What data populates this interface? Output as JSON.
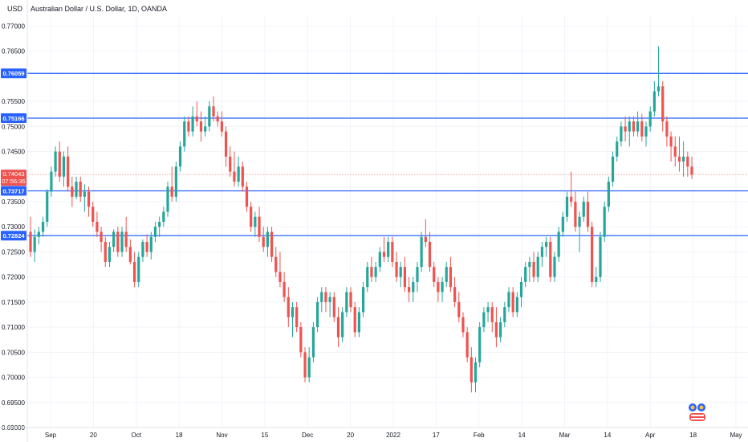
{
  "chart_data": {
    "type": "candlestick",
    "title": "Australian Dollar / U.S. Dollar, 1D, OANDA",
    "currency_label": "USD",
    "ylim": [
      0.69,
      0.772
    ],
    "y_ticks": [
      "0.77000",
      "0.76500",
      "0.75500",
      "0.75000",
      "0.74500",
      "0.73500",
      "0.73000",
      "0.72500",
      "0.72000",
      "0.71500",
      "0.71000",
      "0.70500",
      "0.70000",
      "0.69500",
      "0.69000"
    ],
    "x_labels": [
      "Sep",
      "20",
      "Oct",
      "18",
      "Nov",
      "15",
      "Dec",
      "20",
      "2022",
      "17",
      "Feb",
      "14",
      "Mar",
      "14",
      "Apr",
      "18",
      "May"
    ],
    "levels": [
      {
        "value": 0.76059,
        "label": "0.76059"
      },
      {
        "value": 0.75166,
        "label": "0.75166"
      },
      {
        "value": 0.73717,
        "label": "0.73717"
      },
      {
        "value": 0.72824,
        "label": "0.72824"
      }
    ],
    "current_price": {
      "value": 0.74043,
      "label": "0.74043",
      "countdown": "07:56:36"
    },
    "candles": [
      [
        0.729,
        0.732,
        0.724,
        0.725
      ],
      [
        0.725,
        0.7295,
        0.723,
        0.728
      ],
      [
        0.728,
        0.73,
        0.7265,
        0.729
      ],
      [
        0.729,
        0.732,
        0.728,
        0.731
      ],
      [
        0.731,
        0.7375,
        0.73,
        0.737
      ],
      [
        0.737,
        0.742,
        0.736,
        0.741
      ],
      [
        0.741,
        0.746,
        0.74,
        0.745
      ],
      [
        0.745,
        0.747,
        0.739,
        0.74
      ],
      [
        0.74,
        0.745,
        0.738,
        0.744
      ],
      [
        0.744,
        0.746,
        0.737,
        0.738
      ],
      [
        0.738,
        0.74,
        0.734,
        0.736
      ],
      [
        0.736,
        0.74,
        0.7355,
        0.739
      ],
      [
        0.739,
        0.74,
        0.735,
        0.736
      ],
      [
        0.736,
        0.7385,
        0.733,
        0.737
      ],
      [
        0.737,
        0.738,
        0.732,
        0.734
      ],
      [
        0.734,
        0.735,
        0.73,
        0.731
      ],
      [
        0.731,
        0.733,
        0.728,
        0.729
      ],
      [
        0.729,
        0.73,
        0.725,
        0.727
      ],
      [
        0.727,
        0.728,
        0.722,
        0.723
      ],
      [
        0.723,
        0.727,
        0.722,
        0.726
      ],
      [
        0.726,
        0.7295,
        0.725,
        0.729
      ],
      [
        0.729,
        0.73,
        0.724,
        0.725
      ],
      [
        0.725,
        0.73,
        0.724,
        0.729
      ],
      [
        0.729,
        0.732,
        0.725,
        0.726
      ],
      [
        0.726,
        0.7275,
        0.7225,
        0.723
      ],
      [
        0.723,
        0.725,
        0.718,
        0.719
      ],
      [
        0.719,
        0.725,
        0.718,
        0.724
      ],
      [
        0.724,
        0.7275,
        0.723,
        0.727
      ],
      [
        0.727,
        0.7285,
        0.724,
        0.725
      ],
      [
        0.725,
        0.729,
        0.7235,
        0.728
      ],
      [
        0.728,
        0.731,
        0.727,
        0.73
      ],
      [
        0.73,
        0.732,
        0.728,
        0.731
      ],
      [
        0.731,
        0.734,
        0.73,
        0.733
      ],
      [
        0.733,
        0.739,
        0.732,
        0.738
      ],
      [
        0.738,
        0.742,
        0.735,
        0.736
      ],
      [
        0.736,
        0.743,
        0.735,
        0.742
      ],
      [
        0.742,
        0.747,
        0.741,
        0.746
      ],
      [
        0.746,
        0.752,
        0.745,
        0.751
      ],
      [
        0.751,
        0.752,
        0.748,
        0.749
      ],
      [
        0.749,
        0.754,
        0.748,
        0.752
      ],
      [
        0.752,
        0.755,
        0.75,
        0.751
      ],
      [
        0.751,
        0.753,
        0.747,
        0.749
      ],
      [
        0.749,
        0.752,
        0.748,
        0.75
      ],
      [
        0.75,
        0.755,
        0.749,
        0.754
      ],
      [
        0.754,
        0.756,
        0.751,
        0.752
      ],
      [
        0.752,
        0.753,
        0.75,
        0.751
      ],
      [
        0.751,
        0.753,
        0.748,
        0.749
      ],
      [
        0.749,
        0.75,
        0.742,
        0.744
      ],
      [
        0.744,
        0.746,
        0.74,
        0.741
      ],
      [
        0.741,
        0.745,
        0.738,
        0.739
      ],
      [
        0.739,
        0.744,
        0.738,
        0.742
      ],
      [
        0.742,
        0.743,
        0.737,
        0.738
      ],
      [
        0.738,
        0.739,
        0.733,
        0.734
      ],
      [
        0.734,
        0.735,
        0.729,
        0.73
      ],
      [
        0.73,
        0.733,
        0.728,
        0.732
      ],
      [
        0.732,
        0.734,
        0.727,
        0.728
      ],
      [
        0.728,
        0.73,
        0.725,
        0.726
      ],
      [
        0.726,
        0.73,
        0.724,
        0.729
      ],
      [
        0.729,
        0.73,
        0.723,
        0.724
      ],
      [
        0.724,
        0.726,
        0.72,
        0.721
      ],
      [
        0.721,
        0.725,
        0.718,
        0.719
      ],
      [
        0.719,
        0.721,
        0.715,
        0.716
      ],
      [
        0.716,
        0.718,
        0.71,
        0.712
      ],
      [
        0.712,
        0.715,
        0.708,
        0.714
      ],
      [
        0.714,
        0.715,
        0.709,
        0.71
      ],
      [
        0.71,
        0.711,
        0.704,
        0.705
      ],
      [
        0.705,
        0.706,
        0.699,
        0.7
      ],
      [
        0.7,
        0.706,
        0.699,
        0.704
      ],
      [
        0.704,
        0.711,
        0.703,
        0.71
      ],
      [
        0.71,
        0.716,
        0.709,
        0.715
      ],
      [
        0.715,
        0.718,
        0.713,
        0.717
      ],
      [
        0.717,
        0.718,
        0.713,
        0.715
      ],
      [
        0.715,
        0.717,
        0.712,
        0.716
      ],
      [
        0.716,
        0.717,
        0.711,
        0.712
      ],
      [
        0.712,
        0.714,
        0.706,
        0.708
      ],
      [
        0.708,
        0.714,
        0.707,
        0.713
      ],
      [
        0.713,
        0.718,
        0.712,
        0.717
      ],
      [
        0.717,
        0.718,
        0.713,
        0.714
      ],
      [
        0.714,
        0.715,
        0.708,
        0.709
      ],
      [
        0.709,
        0.714,
        0.708,
        0.713
      ],
      [
        0.713,
        0.719,
        0.712,
        0.718
      ],
      [
        0.718,
        0.723,
        0.717,
        0.722
      ],
      [
        0.722,
        0.724,
        0.719,
        0.72
      ],
      [
        0.72,
        0.723,
        0.719,
        0.722
      ],
      [
        0.722,
        0.726,
        0.721,
        0.725
      ],
      [
        0.725,
        0.728,
        0.723,
        0.724
      ],
      [
        0.724,
        0.728,
        0.723,
        0.727
      ],
      [
        0.727,
        0.728,
        0.722,
        0.723
      ],
      [
        0.723,
        0.725,
        0.719,
        0.72
      ],
      [
        0.72,
        0.723,
        0.718,
        0.722
      ],
      [
        0.722,
        0.724,
        0.717,
        0.718
      ],
      [
        0.718,
        0.72,
        0.715,
        0.717
      ],
      [
        0.717,
        0.72,
        0.715,
        0.719
      ],
      [
        0.719,
        0.723,
        0.717,
        0.722
      ],
      [
        0.722,
        0.729,
        0.721,
        0.728
      ],
      [
        0.728,
        0.7315,
        0.726,
        0.727
      ],
      [
        0.727,
        0.729,
        0.721,
        0.722
      ],
      [
        0.722,
        0.723,
        0.718,
        0.719
      ],
      [
        0.719,
        0.72,
        0.715,
        0.717
      ],
      [
        0.717,
        0.72,
        0.715,
        0.719
      ],
      [
        0.719,
        0.723,
        0.718,
        0.722
      ],
      [
        0.722,
        0.724,
        0.717,
        0.718
      ],
      [
        0.718,
        0.72,
        0.714,
        0.715
      ],
      [
        0.715,
        0.717,
        0.711,
        0.712
      ],
      [
        0.712,
        0.713,
        0.708,
        0.709
      ],
      [
        0.709,
        0.71,
        0.703,
        0.704
      ],
      [
        0.704,
        0.706,
        0.697,
        0.699
      ],
      [
        0.699,
        0.704,
        0.697,
        0.703
      ],
      [
        0.703,
        0.711,
        0.702,
        0.71
      ],
      [
        0.71,
        0.714,
        0.709,
        0.713
      ],
      [
        0.713,
        0.715,
        0.711,
        0.714
      ],
      [
        0.714,
        0.715,
        0.709,
        0.711
      ],
      [
        0.711,
        0.714,
        0.706,
        0.708
      ],
      [
        0.708,
        0.712,
        0.707,
        0.711
      ],
      [
        0.711,
        0.715,
        0.71,
        0.714
      ],
      [
        0.714,
        0.718,
        0.713,
        0.717
      ],
      [
        0.717,
        0.718,
        0.712,
        0.713
      ],
      [
        0.713,
        0.717,
        0.712,
        0.716
      ],
      [
        0.716,
        0.72,
        0.714,
        0.719
      ],
      [
        0.719,
        0.723,
        0.718,
        0.722
      ],
      [
        0.722,
        0.724,
        0.719,
        0.723
      ],
      [
        0.723,
        0.725,
        0.719,
        0.72
      ],
      [
        0.72,
        0.725,
        0.719,
        0.724
      ],
      [
        0.724,
        0.727,
        0.722,
        0.726
      ],
      [
        0.726,
        0.728,
        0.724,
        0.727
      ],
      [
        0.727,
        0.728,
        0.719,
        0.72
      ],
      [
        0.72,
        0.725,
        0.719,
        0.724
      ],
      [
        0.724,
        0.73,
        0.723,
        0.729
      ],
      [
        0.729,
        0.733,
        0.728,
        0.732
      ],
      [
        0.732,
        0.737,
        0.731,
        0.736
      ],
      [
        0.736,
        0.741,
        0.734,
        0.735
      ],
      [
        0.735,
        0.737,
        0.729,
        0.73
      ],
      [
        0.73,
        0.733,
        0.725,
        0.732
      ],
      [
        0.732,
        0.736,
        0.731,
        0.735
      ],
      [
        0.735,
        0.737,
        0.729,
        0.73
      ],
      [
        0.73,
        0.731,
        0.718,
        0.719
      ],
      [
        0.719,
        0.722,
        0.718,
        0.72
      ],
      [
        0.72,
        0.729,
        0.719,
        0.728
      ],
      [
        0.728,
        0.735,
        0.727,
        0.734
      ],
      [
        0.734,
        0.74,
        0.733,
        0.739
      ],
      [
        0.739,
        0.745,
        0.738,
        0.744
      ],
      [
        0.744,
        0.748,
        0.743,
        0.747
      ],
      [
        0.747,
        0.751,
        0.746,
        0.75
      ],
      [
        0.75,
        0.752,
        0.747,
        0.749
      ],
      [
        0.749,
        0.752,
        0.746,
        0.751
      ],
      [
        0.751,
        0.752,
        0.748,
        0.749
      ],
      [
        0.749,
        0.753,
        0.748,
        0.751
      ],
      [
        0.751,
        0.7525,
        0.747,
        0.748
      ],
      [
        0.748,
        0.751,
        0.746,
        0.75
      ],
      [
        0.75,
        0.754,
        0.749,
        0.753
      ],
      [
        0.753,
        0.759,
        0.752,
        0.757
      ],
      [
        0.757,
        0.766,
        0.756,
        0.758
      ],
      [
        0.758,
        0.759,
        0.749,
        0.751
      ],
      [
        0.751,
        0.752,
        0.746,
        0.748
      ],
      [
        0.748,
        0.749,
        0.743,
        0.746
      ],
      [
        0.746,
        0.748,
        0.742,
        0.744
      ],
      [
        0.744,
        0.748,
        0.741,
        0.743
      ],
      [
        0.743,
        0.747,
        0.74,
        0.744
      ],
      [
        0.744,
        0.745,
        0.74,
        0.742
      ],
      [
        0.742,
        0.744,
        0.7395,
        0.7404
      ]
    ]
  }
}
